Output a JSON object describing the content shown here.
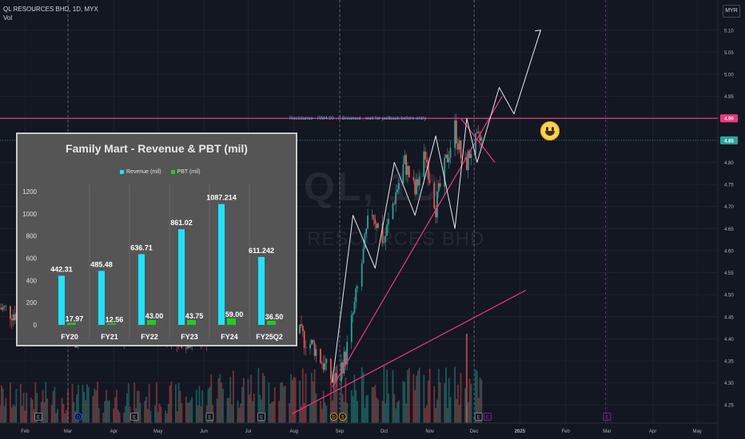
{
  "header": {
    "symbol_line": "QL RESOURCES BHD, 1D, MYX",
    "indicator": "Vol",
    "currency": "MYR"
  },
  "watermark": {
    "symbol": "QL, 1D",
    "name": "RESOURCES BHD"
  },
  "annotations": {
    "resistance_text": "Resistance - RM4.90 , if Breakout , wait for pullback before entry"
  },
  "price_axis": {
    "ticks": [
      "5.10",
      "5.05",
      "5.00",
      "4.95",
      "4.90",
      "4.85",
      "4.80",
      "4.75",
      "4.70",
      "4.65",
      "4.60",
      "4.55",
      "4.50",
      "4.45",
      "4.40",
      "4.35",
      "4.30",
      "4.25"
    ],
    "current_price": "4.85",
    "resistance_price": "4.90"
  },
  "time_axis": {
    "labels": [
      "Feb",
      "Mar",
      "Apr",
      "May",
      "Jun",
      "Jul",
      "Aug",
      "Sep",
      "Oct",
      "Nov",
      "Dec",
      "2025",
      "Feb",
      "Mar",
      "Apr",
      "May"
    ]
  },
  "colors": {
    "up": "#26a69a",
    "down": "#ef5350",
    "trend": "#f23680",
    "resistance": "#f23680",
    "current": "#26a69a",
    "projection": "#e8e8e8",
    "revenue": "#1ee3ff",
    "pbt": "#22cc22"
  },
  "chart_data": [
    {
      "type": "candlestick",
      "title": "",
      "y_unit": "MYR",
      "ylim": [
        4.23,
        5.13
      ],
      "x_range": [
        "2024-01-15",
        "2025-05-15"
      ],
      "grid": true,
      "current_price": 4.85,
      "resistance_level": 4.9,
      "price_path": [
        [
          "2024-01-15",
          4.47
        ],
        [
          "2024-02-01",
          4.45
        ],
        [
          "2024-02-20",
          4.42
        ],
        [
          "2024-03-05",
          4.4
        ],
        [
          "2024-03-25",
          4.43
        ],
        [
          "2024-04-10",
          4.41
        ],
        [
          "2024-05-01",
          4.42
        ],
        [
          "2024-05-20",
          4.4
        ],
        [
          "2024-06-10",
          4.41
        ],
        [
          "2024-07-01",
          4.44
        ],
        [
          "2024-07-10",
          4.52
        ],
        [
          "2024-07-20",
          4.48
        ],
        [
          "2024-08-01",
          4.42
        ],
        [
          "2024-08-15",
          4.38
        ],
        [
          "2024-08-28",
          4.3
        ],
        [
          "2024-09-05",
          4.36
        ],
        [
          "2024-09-15",
          4.55
        ],
        [
          "2024-09-22",
          4.7
        ],
        [
          "2024-10-01",
          4.62
        ],
        [
          "2024-10-08",
          4.72
        ],
        [
          "2024-10-15",
          4.8
        ],
        [
          "2024-10-22",
          4.73
        ],
        [
          "2024-10-29",
          4.82
        ],
        [
          "2024-11-05",
          4.7
        ],
        [
          "2024-11-12",
          4.8
        ],
        [
          "2024-11-18",
          4.88
        ],
        [
          "2024-11-24",
          4.78
        ],
        [
          "2024-11-30",
          4.84
        ],
        [
          "2024-12-06",
          4.85
        ]
      ],
      "events_markers": [
        "E",
        "D",
        "E",
        "E",
        "E",
        "D",
        "S",
        "E",
        "E"
      ],
      "trendlines": [
        {
          "from": [
            "2024-08-27",
            4.29
          ],
          "to": [
            "2024-12-20",
            4.95
          ]
        },
        {
          "from": [
            "2024-07-31",
            4.23
          ],
          "to": [
            "2025-01-05",
            4.51
          ]
        },
        {
          "from": [
            "2024-11-22",
            4.9
          ],
          "to": [
            "2024-12-15",
            4.8
          ]
        }
      ],
      "projection_path": [
        [
          "2024-08-27",
          4.3
        ],
        [
          "2024-09-10",
          4.68
        ],
        [
          "2024-09-25",
          4.56
        ],
        [
          "2024-10-08",
          4.8
        ],
        [
          "2024-10-22",
          4.68
        ],
        [
          "2024-11-05",
          4.86
        ],
        [
          "2024-11-18",
          4.65
        ],
        [
          "2024-11-26",
          4.9
        ],
        [
          "2024-12-03",
          4.8
        ],
        [
          "2024-12-18",
          4.97
        ],
        [
          "2024-12-28",
          4.91
        ],
        [
          "2025-01-15",
          5.1
        ]
      ]
    },
    {
      "type": "bar",
      "title": "Family Mart - Revenue & PBT (mil)",
      "categories": [
        "FY20",
        "FY21",
        "FY22",
        "FY23",
        "FY24",
        "FY25Q2"
      ],
      "series": [
        {
          "name": "Revenue (mil)",
          "values": [
            442.31,
            485.48,
            636.71,
            861.02,
            1087.214,
            611.242
          ],
          "labels": [
            "442.31",
            "485.48",
            "636.71",
            "861.02",
            "1087.214",
            "611.242"
          ]
        },
        {
          "name": "PBT (mil)",
          "values": [
            17.97,
            12.56,
            43.0,
            43.75,
            59.0,
            36.5
          ],
          "labels": [
            "17.97",
            "12.56",
            "43.00",
            "43.75",
            "59.00",
            "36.50"
          ]
        }
      ],
      "yticks": [
        "1200",
        "1000",
        "800",
        "600",
        "400",
        "200",
        "0"
      ],
      "ylim": [
        0,
        1200
      ],
      "legend_position": "top"
    }
  ]
}
